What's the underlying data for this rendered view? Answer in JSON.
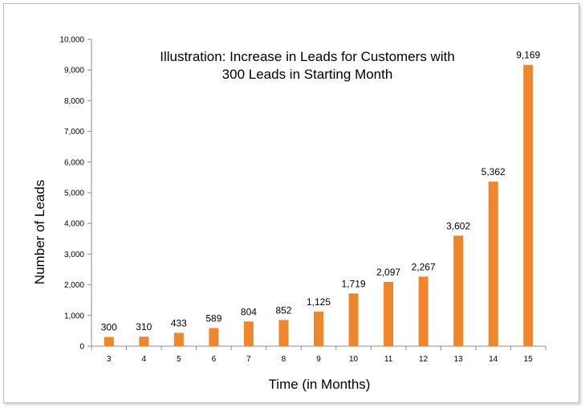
{
  "chart_data": {
    "type": "bar",
    "title_lines": [
      "Illustration: Increase in Leads for Customers with",
      "300 Leads in Starting Month"
    ],
    "xlabel": "Time (in Months)",
    "ylabel": "Number of Leads",
    "categories": [
      "3",
      "4",
      "5",
      "6",
      "7",
      "8",
      "9",
      "10",
      "11",
      "12",
      "13",
      "14",
      "15"
    ],
    "values": [
      300,
      310,
      433,
      589,
      804,
      852,
      1125,
      1719,
      2097,
      2267,
      3602,
      5362,
      9169
    ],
    "value_labels": [
      "300",
      "310",
      "433",
      "589",
      "804",
      "852",
      "1,125",
      "1,719",
      "2,097",
      "2,267",
      "3,602",
      "5,362",
      "9,169"
    ],
    "yticks": [
      0,
      1000,
      2000,
      3000,
      4000,
      5000,
      6000,
      7000,
      8000,
      9000,
      10000
    ],
    "ytick_labels": [
      "0",
      "1,000",
      "2,000",
      "3,000",
      "4,000",
      "5,000",
      "6,000",
      "7,000",
      "8,000",
      "9,000",
      "10,000"
    ],
    "ylim": [
      0,
      10000
    ],
    "grid": false,
    "legend": "none",
    "bar_color": "#f0862b"
  }
}
